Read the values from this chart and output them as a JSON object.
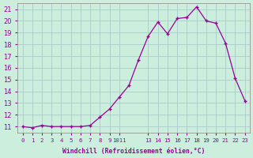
{
  "x": [
    0,
    1,
    2,
    3,
    4,
    5,
    6,
    7,
    8,
    9,
    10,
    11,
    12,
    13,
    14,
    15,
    16,
    17,
    18,
    19,
    20,
    21,
    22,
    23
  ],
  "y": [
    11.0,
    10.9,
    11.1,
    11.0,
    11.0,
    11.0,
    11.0,
    11.1,
    11.8,
    12.5,
    13.5,
    14.5,
    16.7,
    18.7,
    19.9,
    18.9,
    20.2,
    20.3,
    21.2,
    20.0,
    19.8,
    18.1,
    15.1,
    13.2
  ],
  "line_color": "#990099",
  "marker_color": "#990099",
  "bg_color": "#cceedd",
  "grid_color": "#aacccc",
  "xlabel": "Windchill (Refroidissement éolien,°C)",
  "xlim": [
    -0.5,
    23.5
  ],
  "ylim": [
    10.5,
    21.5
  ],
  "yticks": [
    11,
    12,
    13,
    14,
    15,
    16,
    17,
    18,
    19,
    20,
    21
  ],
  "xtick_positions": [
    0,
    1,
    2,
    3,
    4,
    5,
    6,
    7,
    8,
    9,
    10,
    13,
    14,
    15,
    16,
    17,
    18,
    19,
    20,
    21,
    22,
    23
  ],
  "xtick_labels": [
    "0",
    "1",
    "2",
    "3",
    "4",
    "5",
    "6",
    "7",
    "8",
    "9",
    "1011",
    "13",
    "14",
    "15",
    "16",
    "17",
    "18",
    "19",
    "20",
    "21",
    "22",
    "23"
  ]
}
